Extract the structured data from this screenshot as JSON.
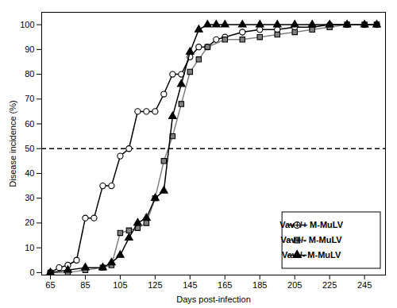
{
  "chart_data": {
    "type": "line",
    "xlabel": "Days post-infection",
    "ylabel": "Disease incidence (%)",
    "xlim": [
      60,
      257
    ],
    "ylim": [
      -1,
      105
    ],
    "xticks": [
      65,
      85,
      105,
      125,
      145,
      165,
      185,
      205,
      225,
      245
    ],
    "yticks": [
      0,
      10,
      20,
      30,
      40,
      50,
      60,
      70,
      80,
      90,
      100
    ],
    "grid": false,
    "legend": "lower right",
    "reference_lines": [
      {
        "value": 50,
        "line_style": "dashed",
        "color": "#000000"
      }
    ],
    "series": [
      {
        "name": "Vav+/+ M-MuLV",
        "color": "#000000",
        "marker": "circle-open",
        "x": [
          65,
          70,
          75,
          80,
          85,
          90,
          95,
          100,
          105,
          110,
          115,
          120,
          125,
          130,
          135,
          140,
          145,
          150,
          155,
          160,
          165,
          175,
          185,
          195,
          205,
          215,
          225,
          235,
          245,
          252
        ],
        "values": [
          0,
          2,
          3,
          5,
          22,
          22,
          35,
          35,
          47,
          50,
          65,
          65,
          65,
          72,
          80,
          80,
          87,
          91,
          91,
          94,
          95,
          97,
          98,
          98,
          99,
          99,
          100,
          100,
          100,
          100
        ]
      },
      {
        "name": "Vav+/- M-MuLV",
        "color": "#808080",
        "marker": "square",
        "x": [
          65,
          75,
          85,
          95,
          100,
          105,
          110,
          115,
          120,
          125,
          130,
          135,
          140,
          145,
          150,
          155,
          165,
          175,
          185,
          195,
          205,
          215,
          225,
          235,
          245,
          252
        ],
        "values": [
          0,
          0,
          1,
          2,
          3,
          16,
          17,
          18,
          20,
          30,
          45,
          55,
          68,
          81,
          86,
          91,
          94,
          94,
          95,
          96,
          97,
          98,
          99,
          100,
          100,
          100
        ]
      },
      {
        "name": "Vav-/- M-MuLV",
        "color": "#000000",
        "marker": "triangle",
        "x": [
          65,
          75,
          85,
          95,
          100,
          105,
          110,
          115,
          120,
          125,
          130,
          135,
          140,
          145,
          150,
          155,
          160,
          165,
          175,
          185,
          195,
          205,
          215,
          225,
          235,
          245,
          252
        ],
        "values": [
          0,
          1,
          2,
          2,
          4,
          7,
          14,
          20,
          22,
          30,
          33,
          63,
          76,
          89,
          98,
          100,
          100,
          100,
          100,
          100,
          100,
          100,
          100,
          100,
          100,
          100,
          100
        ]
      }
    ]
  }
}
